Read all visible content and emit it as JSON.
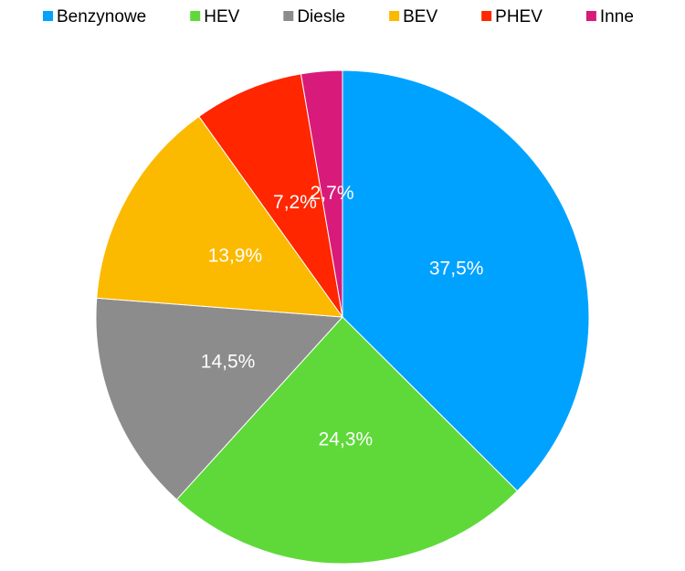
{
  "chart_data": {
    "type": "pie",
    "categories": [
      "Benzynowe",
      "HEV",
      "Diesle",
      "BEV",
      "PHEV",
      "Inne"
    ],
    "values": [
      37.5,
      24.3,
      14.5,
      13.9,
      7.2,
      2.7
    ],
    "value_labels": [
      "37,5%",
      "24,3%",
      "14,5%",
      "13,9%",
      "7,2%",
      "2,7%"
    ],
    "colors": [
      "#00a2ff",
      "#5fd93a",
      "#8c8c8c",
      "#fbb900",
      "#ff2600",
      "#d81b7a"
    ],
    "legend": "top"
  }
}
